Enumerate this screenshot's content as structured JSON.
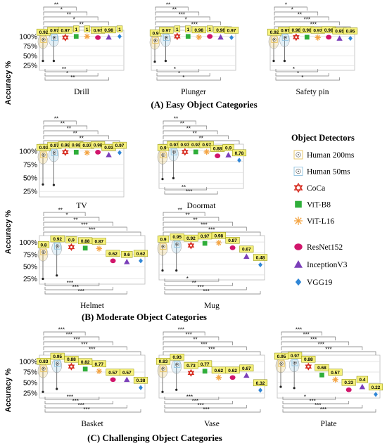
{
  "y_axis_title": "Accuracy %",
  "y_ticks": [
    "100%",
    "75%",
    "50%",
    "25%"
  ],
  "legend": {
    "title": "Object Detectors",
    "items": [
      {
        "name": "Human 200ms",
        "color": "#e8c25a",
        "icon": "circle-dot-square"
      },
      {
        "name": "Human 50ms",
        "color": "#8fc3e0",
        "icon": "circle-dot-square"
      },
      {
        "name": "CoCa",
        "color": "#d62b1f",
        "icon": "star-of-david"
      },
      {
        "name": "ViT-B8",
        "color": "#2fae3a",
        "icon": "square"
      },
      {
        "name": "ViT-L16",
        "color": "#f4a340",
        "icon": "asterisk"
      },
      {
        "name": "ResNet152",
        "color": "#d1156b",
        "icon": "ellipse"
      },
      {
        "name": "InceptionV3",
        "color": "#7b3fb9",
        "icon": "triangle"
      },
      {
        "name": "VGG19",
        "color": "#2f86d6",
        "icon": "diamond"
      }
    ]
  },
  "sections": [
    {
      "title": "(A) Easy Object Categories"
    },
    {
      "title": "(B) Moderate Object Categories"
    },
    {
      "title": "(C) Challenging Object Categories"
    }
  ],
  "chart_data": [
    {
      "type": "scatter",
      "category": "Drill",
      "title": "Drill",
      "ylabel": "Accuracy %",
      "ylim": [
        0.2,
        1.05
      ],
      "series": [
        {
          "name": "Human 200ms",
          "values": [
            0.92
          ]
        },
        {
          "name": "Human 50ms",
          "values": [
            0.97
          ]
        },
        {
          "name": "CoCa",
          "values": [
            0.97
          ]
        },
        {
          "name": "ViT-B8",
          "values": [
            1
          ]
        },
        {
          "name": "ViT-L16",
          "values": [
            1
          ]
        },
        {
          "name": "ResNet152",
          "values": [
            0.97
          ]
        },
        {
          "name": "InceptionV3",
          "values": [
            0.98
          ]
        },
        {
          "name": "VGG19",
          "values": [
            1
          ]
        }
      ],
      "significance_above": [
        "**",
        "*",
        "**",
        "*",
        "**"
      ],
      "significance_below": [
        "**",
        "*",
        "**"
      ]
    },
    {
      "type": "scatter",
      "category": "Plunger",
      "title": "Plunger",
      "ylabel": "Accuracy %",
      "ylim": [
        0.2,
        1.05
      ],
      "series": [
        {
          "name": "Human 200ms",
          "values": [
            0.9
          ]
        },
        {
          "name": "Human 50ms",
          "values": [
            0.97
          ]
        },
        {
          "name": "CoCa",
          "values": [
            1
          ]
        },
        {
          "name": "ViT-B8",
          "values": [
            1
          ]
        },
        {
          "name": "ViT-L16",
          "values": [
            0.98
          ]
        },
        {
          "name": "ResNet152",
          "values": [
            1
          ]
        },
        {
          "name": "InceptionV3",
          "values": [
            0.98
          ]
        },
        {
          "name": "VGG19",
          "values": [
            0.97
          ]
        }
      ],
      "significance_above": [
        "**",
        "**",
        "***",
        "*",
        "***"
      ],
      "significance_below": [
        "*",
        "*",
        "*"
      ]
    },
    {
      "type": "scatter",
      "category": "Safety pin",
      "title": "Safety pin",
      "ylabel": "Accuracy %",
      "ylim": [
        0.2,
        1.05
      ],
      "series": [
        {
          "name": "Human 200ms",
          "values": [
            0.92
          ]
        },
        {
          "name": "Human 50ms",
          "values": [
            0.97
          ]
        },
        {
          "name": "CoCa",
          "values": [
            0.98
          ]
        },
        {
          "name": "ViT-B8",
          "values": [
            0.98
          ]
        },
        {
          "name": "ViT-L16",
          "values": [
            0.97
          ]
        },
        {
          "name": "ResNet152",
          "values": [
            0.98
          ]
        },
        {
          "name": "InceptionV3",
          "values": [
            0.95
          ]
        },
        {
          "name": "VGG19",
          "values": [
            0.95
          ]
        }
      ],
      "significance_above": [
        "*",
        "*",
        "**",
        "***",
        "***"
      ],
      "significance_below": [
        "*",
        "*",
        "*"
      ]
    },
    {
      "type": "scatter",
      "category": "TV",
      "title": "TV",
      "ylabel": "Accuracy %",
      "ylim": [
        0.2,
        1.05
      ],
      "series": [
        {
          "name": "Human 200ms",
          "values": [
            0.93
          ]
        },
        {
          "name": "Human 50ms",
          "values": [
            0.97
          ]
        },
        {
          "name": "CoCa",
          "values": [
            0.98
          ]
        },
        {
          "name": "ViT-B8",
          "values": [
            0.98
          ]
        },
        {
          "name": "ViT-L16",
          "values": [
            0.97
          ]
        },
        {
          "name": "ResNet152",
          "values": [
            0.98
          ]
        },
        {
          "name": "InceptionV3",
          "values": [
            0.93
          ]
        },
        {
          "name": "VGG19",
          "values": [
            0.97
          ]
        }
      ],
      "significance_above": [
        "**",
        "**",
        "**",
        "**",
        "**"
      ],
      "significance_below": []
    },
    {
      "type": "scatter",
      "category": "Doormat",
      "title": "Doormat",
      "ylabel": "Accuracy %",
      "ylim": [
        0.2,
        1.05
      ],
      "series": [
        {
          "name": "Human 200ms",
          "values": [
            0.9
          ]
        },
        {
          "name": "Human 50ms",
          "values": [
            0.97
          ]
        },
        {
          "name": "CoCa",
          "values": [
            0.97
          ]
        },
        {
          "name": "ViT-B8",
          "values": [
            0.97
          ]
        },
        {
          "name": "ViT-L16",
          "values": [
            0.97
          ]
        },
        {
          "name": "ResNet152",
          "values": [
            0.88
          ]
        },
        {
          "name": "InceptionV3",
          "values": [
            0.9
          ]
        },
        {
          "name": "VGG19",
          "values": [
            0.78
          ]
        }
      ],
      "significance_above": [
        "**",
        "**",
        "**",
        "**",
        "**"
      ],
      "significance_below": [
        "**",
        "***"
      ]
    },
    {
      "type": "scatter",
      "category": "Helmet",
      "title": "Helmet",
      "ylabel": "Accuracy %",
      "ylim": [
        0.2,
        1.05
      ],
      "series": [
        {
          "name": "Human 200ms",
          "values": [
            0.8
          ]
        },
        {
          "name": "Human 50ms",
          "values": [
            0.92
          ]
        },
        {
          "name": "CoCa",
          "values": [
            0.9
          ]
        },
        {
          "name": "ViT-B8",
          "values": [
            0.88
          ]
        },
        {
          "name": "ViT-L16",
          "values": [
            0.87
          ]
        },
        {
          "name": "ResNet152",
          "values": [
            0.62
          ]
        },
        {
          "name": "InceptionV3",
          "values": [
            0.6
          ]
        },
        {
          "name": "VGG19",
          "values": [
            0.62
          ]
        }
      ],
      "significance_above": [
        "**",
        "*",
        "**",
        "***",
        "***"
      ],
      "significance_below": [
        "***",
        "***",
        "***"
      ]
    },
    {
      "type": "scatter",
      "category": "Mug",
      "title": "Mug",
      "ylabel": "Accuracy %",
      "ylim": [
        0.2,
        1.05
      ],
      "series": [
        {
          "name": "Human 200ms",
          "values": [
            0.9
          ]
        },
        {
          "name": "Human 50ms",
          "values": [
            0.95
          ]
        },
        {
          "name": "CoCa",
          "values": [
            0.92
          ]
        },
        {
          "name": "ViT-B8",
          "values": [
            0.97
          ]
        },
        {
          "name": "ViT-L16",
          "values": [
            0.98
          ]
        },
        {
          "name": "ResNet152",
          "values": [
            0.87
          ]
        },
        {
          "name": "InceptionV3",
          "values": [
            0.67
          ]
        },
        {
          "name": "VGG19",
          "values": [
            0.48
          ]
        }
      ],
      "significance_above": [
        "**",
        "**",
        "**",
        "***",
        "***"
      ],
      "significance_below": [
        "*",
        "**",
        "***",
        "***"
      ]
    },
    {
      "type": "scatter",
      "category": "Basket",
      "title": "Basket",
      "ylabel": "Accuracy %",
      "ylim": [
        0.2,
        1.05
      ],
      "series": [
        {
          "name": "Human 200ms",
          "values": [
            0.83
          ]
        },
        {
          "name": "Human 50ms",
          "values": [
            0.95
          ]
        },
        {
          "name": "CoCa",
          "values": [
            0.88
          ]
        },
        {
          "name": "ViT-B8",
          "values": [
            0.82
          ]
        },
        {
          "name": "ViT-L16",
          "values": [
            0.77
          ]
        },
        {
          "name": "ResNet152",
          "values": [
            0.57
          ]
        },
        {
          "name": "InceptionV3",
          "values": [
            0.57
          ]
        },
        {
          "name": "VGG19",
          "values": [
            0.38
          ]
        }
      ],
      "significance_above": [
        "***",
        "***",
        "***",
        "***",
        "***"
      ],
      "significance_below": [
        "***",
        "***",
        "***",
        "***"
      ]
    },
    {
      "type": "scatter",
      "category": "Vase",
      "title": "Vase",
      "ylabel": "Accuracy %",
      "ylim": [
        0.2,
        1.05
      ],
      "series": [
        {
          "name": "Human 200ms",
          "values": [
            0.83
          ]
        },
        {
          "name": "Human 50ms",
          "values": [
            0.93
          ]
        },
        {
          "name": "CoCa",
          "values": [
            0.73
          ]
        },
        {
          "name": "ViT-B8",
          "values": [
            0.77
          ]
        },
        {
          "name": "ViT-L16",
          "values": [
            0.62
          ]
        },
        {
          "name": "ResNet152",
          "values": [
            0.62
          ]
        },
        {
          "name": "InceptionV3",
          "values": [
            0.67
          ]
        },
        {
          "name": "VGG19",
          "values": [
            0.32
          ]
        }
      ],
      "significance_above": [
        "***",
        "***",
        "**",
        "***",
        "***"
      ],
      "significance_below": [
        "***",
        "***",
        "***",
        "***"
      ]
    },
    {
      "type": "scatter",
      "category": "Plate",
      "title": "Plate",
      "ylabel": "Accuracy %",
      "ylim": [
        0.2,
        1.05
      ],
      "series": [
        {
          "name": "Human 200ms",
          "values": [
            0.95
          ]
        },
        {
          "name": "Human 50ms",
          "values": [
            0.97
          ]
        },
        {
          "name": "CoCa",
          "values": [
            0.88
          ]
        },
        {
          "name": "ViT-B8",
          "values": [
            0.68
          ]
        },
        {
          "name": "ViT-L16",
          "values": [
            0.57
          ]
        },
        {
          "name": "ResNet152",
          "values": [
            0.33
          ]
        },
        {
          "name": "InceptionV3",
          "values": [
            0.4
          ]
        },
        {
          "name": "VGG19",
          "values": [
            0.22
          ]
        }
      ],
      "significance_above": [
        "***",
        "***",
        "***",
        "***",
        "***"
      ],
      "significance_below": [
        "*",
        "***",
        "***",
        "***"
      ]
    }
  ]
}
